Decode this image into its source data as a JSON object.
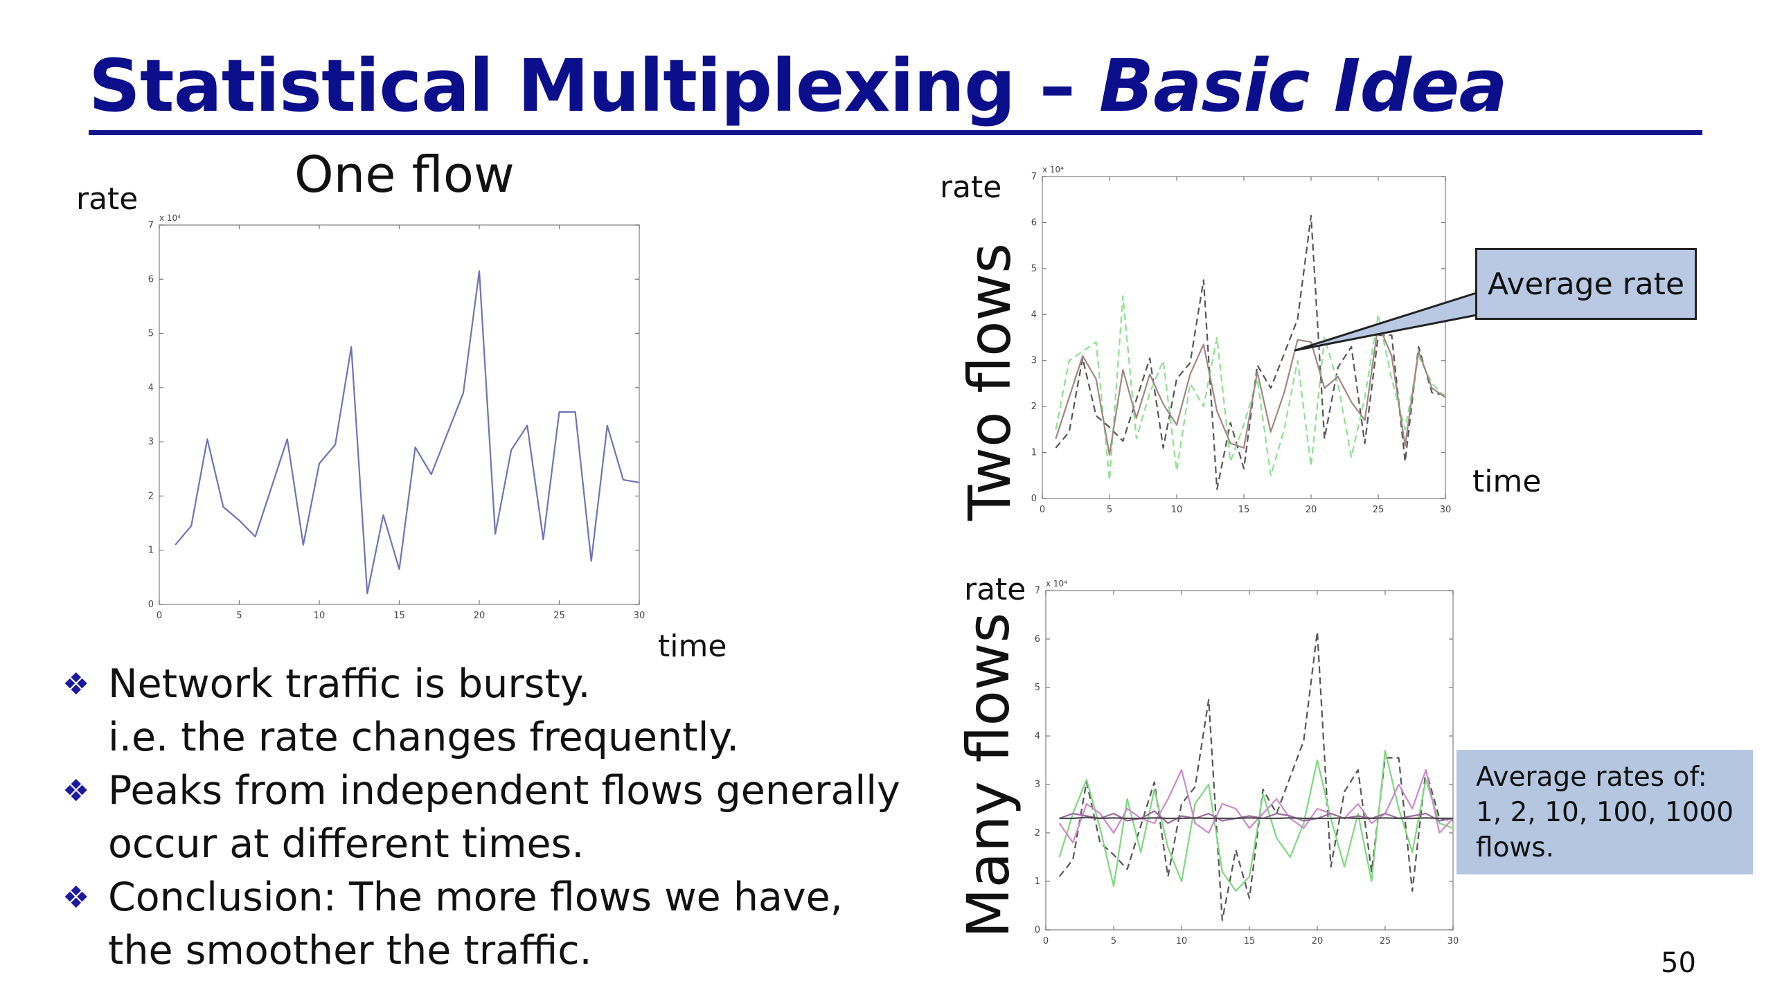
{
  "title": {
    "main": "Statistical Multiplexing – ",
    "italic": "Basic Idea"
  },
  "one_flow": {
    "heading": "One flow",
    "y_label": "rate",
    "x_label": "time"
  },
  "two_flows": {
    "side_label": "Two flows",
    "y_label": "rate",
    "x_label": "time"
  },
  "many_flows": {
    "side_label": "Many flows",
    "y_label": "rate"
  },
  "callouts": {
    "average_rate": "Average rate",
    "average_rates_of": [
      "Average rates of:",
      "1, 2, 10, 100, 1000",
      "flows."
    ]
  },
  "bullets": [
    {
      "mark": "❖",
      "lines": [
        "Network traffic is bursty.",
        "i.e. the rate changes frequently."
      ]
    },
    {
      "mark": "❖",
      "lines": [
        "Peaks from independent flows generally",
        "occur at different times."
      ]
    },
    {
      "mark": "❖",
      "lines": [
        "Conclusion: The more flows we have,",
        "the smoother the traffic."
      ]
    }
  ],
  "page_number": "50",
  "chart_data": [
    {
      "type": "line",
      "name": "one-flow",
      "xlim": [
        0,
        30
      ],
      "ylim": [
        0,
        7
      ],
      "x_ticks": [
        0,
        5,
        10,
        15,
        20,
        25,
        30
      ],
      "y_ticks": [
        0,
        1,
        2,
        3,
        4,
        5,
        6,
        7
      ],
      "y_multiplier": "x 10⁴",
      "x": [
        1,
        2,
        3,
        4,
        5,
        6,
        7,
        8,
        9,
        10,
        11,
        12,
        13,
        14,
        15,
        16,
        17,
        18,
        19,
        20,
        21,
        22,
        23,
        24,
        25,
        26,
        27,
        28,
        29,
        30
      ],
      "series": [
        {
          "color": "#6f72b4",
          "dash": false,
          "values": [
            1.1,
            1.45,
            3.05,
            1.8,
            1.55,
            1.25,
            2.15,
            3.05,
            1.1,
            2.6,
            2.95,
            4.75,
            0.2,
            1.65,
            0.65,
            2.9,
            2.4,
            3.15,
            3.9,
            6.15,
            1.3,
            2.85,
            3.3,
            1.2,
            3.55,
            3.55,
            0.8,
            3.3,
            2.3,
            2.25
          ]
        }
      ]
    },
    {
      "type": "line",
      "name": "two-flows",
      "xlim": [
        0,
        30
      ],
      "ylim": [
        0,
        7
      ],
      "x_ticks": [
        0,
        5,
        10,
        15,
        20,
        25,
        30
      ],
      "y_ticks": [
        0,
        1,
        2,
        3,
        4,
        5,
        6,
        7
      ],
      "y_multiplier": "x 10⁴",
      "x": [
        1,
        2,
        3,
        4,
        5,
        6,
        7,
        8,
        9,
        10,
        11,
        12,
        13,
        14,
        15,
        16,
        17,
        18,
        19,
        20,
        21,
        22,
        23,
        24,
        25,
        26,
        27,
        28,
        29,
        30
      ],
      "series": [
        {
          "color": "#555555",
          "dash": true,
          "values": [
            1.1,
            1.45,
            3.05,
            1.8,
            1.55,
            1.25,
            2.15,
            3.05,
            1.1,
            2.6,
            2.95,
            4.75,
            0.2,
            1.65,
            0.65,
            2.9,
            2.4,
            3.15,
            3.9,
            6.15,
            1.3,
            2.85,
            3.3,
            1.2,
            3.55,
            3.55,
            0.8,
            3.3,
            2.3,
            2.25
          ]
        },
        {
          "color": "#8fe08f",
          "dash": true,
          "values": [
            1.5,
            3.0,
            3.2,
            3.4,
            0.4,
            4.4,
            1.3,
            2.3,
            3.0,
            0.6,
            2.5,
            2.0,
            3.5,
            0.8,
            1.6,
            2.6,
            0.5,
            1.5,
            3.0,
            0.7,
            3.5,
            2.5,
            0.9,
            2.2,
            4.0,
            2.6,
            1.5,
            3.1,
            2.5,
            2.2
          ]
        },
        {
          "color": "#a08585",
          "dash": false,
          "values": [
            1.3,
            2.2,
            3.1,
            2.6,
            0.95,
            2.8,
            1.75,
            2.7,
            2.05,
            1.6,
            2.7,
            3.35,
            1.9,
            1.2,
            1.1,
            2.75,
            1.45,
            2.3,
            3.45,
            3.4,
            2.4,
            2.65,
            2.1,
            1.7,
            3.8,
            3.1,
            1.15,
            3.2,
            2.4,
            2.2
          ]
        }
      ]
    },
    {
      "type": "line",
      "name": "many-flows",
      "xlim": [
        0,
        30
      ],
      "ylim": [
        0,
        7
      ],
      "x_ticks": [
        0,
        5,
        10,
        15,
        20,
        25,
        30
      ],
      "y_ticks": [
        0,
        1,
        2,
        3,
        4,
        5,
        6,
        7
      ],
      "y_multiplier": "x 10⁴",
      "x": [
        1,
        2,
        3,
        4,
        5,
        6,
        7,
        8,
        9,
        10,
        11,
        12,
        13,
        14,
        15,
        16,
        17,
        18,
        19,
        20,
        21,
        22,
        23,
        24,
        25,
        26,
        27,
        28,
        29,
        30
      ],
      "series": [
        {
          "color": "#555555",
          "dash": true,
          "values": [
            1.1,
            1.45,
            3.05,
            1.8,
            1.55,
            1.25,
            2.15,
            3.05,
            1.1,
            2.6,
            2.95,
            4.75,
            0.2,
            1.65,
            0.65,
            2.9,
            2.4,
            3.15,
            3.9,
            6.15,
            1.3,
            2.85,
            3.3,
            1.2,
            3.55,
            3.55,
            0.8,
            3.3,
            2.3,
            2.25
          ]
        },
        {
          "color": "#7ed87e",
          "dash": false,
          "values": [
            1.5,
            2.4,
            3.1,
            2.1,
            0.9,
            2.7,
            1.6,
            2.9,
            1.7,
            1.0,
            2.6,
            3.0,
            1.2,
            0.8,
            1.1,
            2.8,
            1.9,
            1.5,
            2.2,
            3.5,
            2.3,
            1.3,
            2.4,
            1.0,
            3.7,
            2.5,
            1.6,
            3.1,
            2.2,
            2.1
          ]
        },
        {
          "color": "#cc88cc",
          "dash": false,
          "values": [
            2.2,
            1.8,
            2.6,
            2.4,
            2.0,
            2.5,
            2.3,
            2.2,
            2.7,
            3.3,
            2.2,
            2.0,
            2.6,
            2.5,
            2.1,
            2.4,
            2.7,
            2.3,
            2.1,
            2.5,
            2.4,
            2.3,
            2.6,
            2.2,
            2.4,
            3.0,
            2.5,
            3.3,
            2.0,
            2.3
          ]
        },
        {
          "color": "#9a6aa0",
          "dash": false,
          "values": [
            2.3,
            2.4,
            2.35,
            2.3,
            2.4,
            2.25,
            2.3,
            2.45,
            2.2,
            2.35,
            2.3,
            2.4,
            2.25,
            2.3,
            2.35,
            2.3,
            2.4,
            2.35,
            2.25,
            2.3,
            2.4,
            2.3,
            2.35,
            2.3,
            2.4,
            2.3,
            2.35,
            2.4,
            2.25,
            2.3
          ]
        },
        {
          "color": "#4a4a4a",
          "dash": false,
          "values": [
            2.3,
            2.3,
            2.32,
            2.3,
            2.31,
            2.3,
            2.3,
            2.31,
            2.3,
            2.3,
            2.31,
            2.3,
            2.3,
            2.3,
            2.31,
            2.3,
            2.3,
            2.31,
            2.3,
            2.3,
            2.3,
            2.31,
            2.3,
            2.3,
            2.31,
            2.3,
            2.3,
            2.31,
            2.3,
            2.3
          ]
        }
      ]
    }
  ]
}
